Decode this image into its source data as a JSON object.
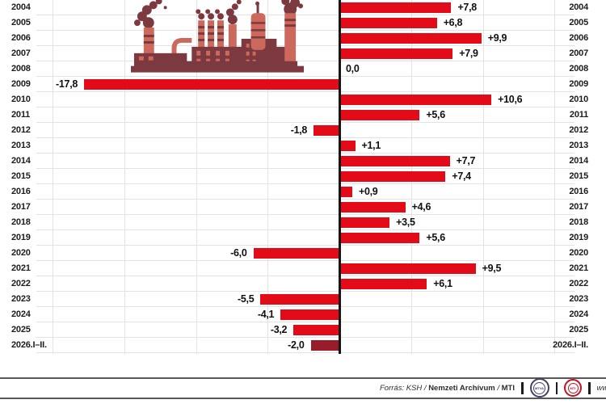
{
  "chart_data": {
    "type": "bar",
    "orientation": "horizontal",
    "categories": [
      "2004",
      "2005",
      "2006",
      "2007",
      "2008",
      "2009",
      "2010",
      "2011",
      "2012",
      "2013",
      "2014",
      "2015",
      "2016",
      "2017",
      "2018",
      "2019",
      "2020",
      "2021",
      "2022",
      "2023",
      "2024",
      "2025",
      "2026.I–II."
    ],
    "values": [
      7.8,
      6.8,
      9.9,
      7.9,
      0.0,
      -17.8,
      10.6,
      5.6,
      -1.8,
      1.1,
      7.7,
      7.4,
      0.9,
      4.6,
      3.5,
      5.6,
      -6.0,
      9.5,
      6.1,
      -5.5,
      -4.1,
      -3.2,
      -2.0
    ],
    "value_labels": [
      "+7,8",
      "+6,8",
      "+9,9",
      "+7,9",
      "0,0",
      "-17,8",
      "+10,6",
      "+5,6",
      "-1,8",
      "+1,1",
      "+7,7",
      "+7,4",
      "+0,9",
      "+4,6",
      "+3,5",
      "+5,6",
      "-6,0",
      "+9,5",
      "+6,1",
      "-5,5",
      "-4,1",
      "-3,2",
      "-2,0"
    ],
    "xlim": [
      -20.5,
      16.5
    ],
    "gridline_step": 5,
    "grid": true,
    "legend": false,
    "year_labels_on_both_sides": true,
    "bar_color": "#e30b17",
    "highlight_color": "#991c2b",
    "highlight_index": 22
  },
  "illustration": {
    "name": "factory-with-smoking-chimneys",
    "dark_color": "#7c3a40",
    "light_color": "#cc685c"
  },
  "footer": {
    "source_prefix": "Forrás: KSH /",
    "source_bold": "Nemzeti Archívum",
    "source_mid": "/",
    "source_suffix": "MTI",
    "logo_mtva": "MTVA",
    "logo_mti": "MTI",
    "url": "www.m"
  }
}
